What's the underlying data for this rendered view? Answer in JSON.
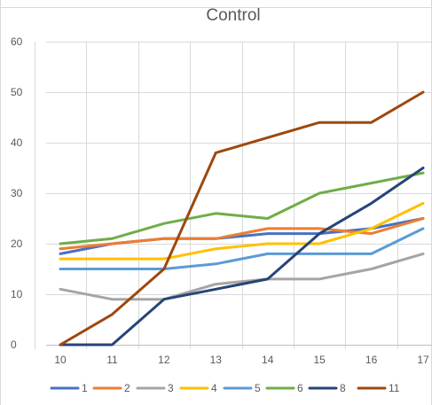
{
  "chart_data": {
    "type": "line",
    "title": "Control",
    "xlabel": "",
    "ylabel": "",
    "x": [
      10,
      11,
      12,
      13,
      14,
      15,
      16,
      17
    ],
    "ylim": [
      0,
      60
    ],
    "yticks": [
      0,
      10,
      20,
      30,
      40,
      50,
      60
    ],
    "grid": true,
    "legend_position": "bottom",
    "series": [
      {
        "name": "1",
        "color": "#4472C4",
        "values": [
          18,
          20,
          21,
          21,
          22,
          22,
          23,
          25
        ]
      },
      {
        "name": "2",
        "color": "#ED7D31",
        "values": [
          19,
          20,
          21,
          21,
          23,
          23,
          22,
          25
        ]
      },
      {
        "name": "3",
        "color": "#A5A5A5",
        "values": [
          11,
          9,
          9,
          12,
          13,
          13,
          15,
          18
        ]
      },
      {
        "name": "4",
        "color": "#FFC000",
        "values": [
          17,
          17,
          17,
          19,
          20,
          20,
          23,
          28
        ]
      },
      {
        "name": "5",
        "color": "#5B9BD5",
        "values": [
          15,
          15,
          15,
          16,
          18,
          18,
          18,
          23
        ]
      },
      {
        "name": "6",
        "color": "#70AD47",
        "values": [
          20,
          21,
          24,
          26,
          25,
          30,
          32,
          34
        ]
      },
      {
        "name": "8",
        "color": "#264478",
        "values": [
          0,
          0,
          9,
          11,
          13,
          22,
          28,
          35
        ]
      },
      {
        "name": "11",
        "color": "#9E480E",
        "values": [
          0,
          6,
          15,
          38,
          41,
          44,
          44,
          50
        ]
      }
    ]
  }
}
